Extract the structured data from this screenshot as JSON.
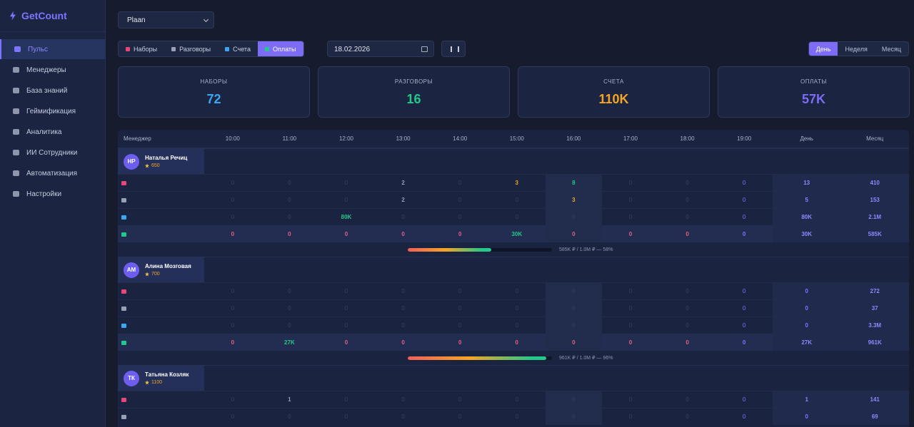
{
  "sidebar": {
    "brand": "GetCount",
    "nav": [
      "Пульс",
      "Менеджеры",
      "База знаний",
      "Геймификация",
      "Аналитика",
      "ИИ Сотрудники",
      "Автоматизация",
      "Настройки"
    ],
    "active": 0
  },
  "toolbar": {
    "select": "Plaan",
    "tabs": [
      "Наборы",
      "Разговоры",
      "Счета",
      "Оплаты"
    ],
    "active_tab": 3,
    "date": "18.02.2026",
    "periods": [
      "День",
      "Неделя",
      "Месяц"
    ],
    "active_period": 0
  },
  "cards": [
    {
      "label": "НАБОРЫ",
      "value": "72",
      "color": "#3ea6f0"
    },
    {
      "label": "РАЗГОВОРЫ",
      "value": "16",
      "color": "#22c98a"
    },
    {
      "label": "СЧЕТА",
      "value": "110K",
      "color": "#f5a524"
    },
    {
      "label": "ОПЛАТЫ",
      "value": "57K",
      "color": "#7b6cf6"
    }
  ],
  "table": {
    "columns": [
      "Менеджер",
      "10:00",
      "11:00",
      "12:00",
      "13:00",
      "14:00",
      "15:00",
      "16:00",
      "17:00",
      "18:00",
      "19:00",
      "День",
      "Месяц"
    ],
    "highlight_column": 7,
    "managers": [
      {
        "initials": "НР",
        "name": "Наталья Речиц",
        "score": "650",
        "rows": [
          [
            "0",
            "0",
            "0",
            "2",
            "0",
            "3",
            "8",
            "0",
            "0",
            "0",
            "13",
            "410"
          ],
          [
            "0",
            "0",
            "0",
            "2",
            "0",
            "0",
            "3",
            "0",
            "0",
            "0",
            "5",
            "153"
          ],
          [
            "0",
            "0",
            "80K",
            "0",
            "0",
            "0",
            "0",
            "0",
            "0",
            "0",
            "80K",
            "2.1M"
          ],
          [
            "0",
            "0",
            "0",
            "0",
            "0",
            "30K",
            "0",
            "0",
            "0",
            "0",
            "30K",
            "585K"
          ]
        ],
        "progress": {
          "label": "585K ₽ / 1.0M ₽ — 58%",
          "percent": 58
        }
      },
      {
        "initials": "АМ",
        "name": "Алина Мозговая",
        "score": "700",
        "rows": [
          [
            "0",
            "0",
            "0",
            "0",
            "0",
            "0",
            "0",
            "0",
            "0",
            "0",
            "0",
            "272"
          ],
          [
            "0",
            "0",
            "0",
            "0",
            "0",
            "0",
            "0",
            "0",
            "0",
            "0",
            "0",
            "37"
          ],
          [
            "0",
            "0",
            "0",
            "0",
            "0",
            "0",
            "0",
            "0",
            "0",
            "0",
            "0",
            "3.3M"
          ],
          [
            "0",
            "27K",
            "0",
            "0",
            "0",
            "0",
            "0",
            "0",
            "0",
            "0",
            "27K",
            "961K"
          ]
        ],
        "progress": {
          "label": "961K ₽ / 1.0M ₽ — 96%",
          "percent": 96
        }
      },
      {
        "initials": "ТК",
        "name": "Татьяна Козляк",
        "score": "1100",
        "rows": [
          [
            "0",
            "1",
            "0",
            "0",
            "0",
            "0",
            "0",
            "0",
            "0",
            "0",
            "1",
            "141"
          ],
          [
            "0",
            "0",
            "0",
            "0",
            "0",
            "0",
            "0",
            "0",
            "0",
            "0",
            "0",
            "69"
          ]
        ]
      }
    ]
  }
}
